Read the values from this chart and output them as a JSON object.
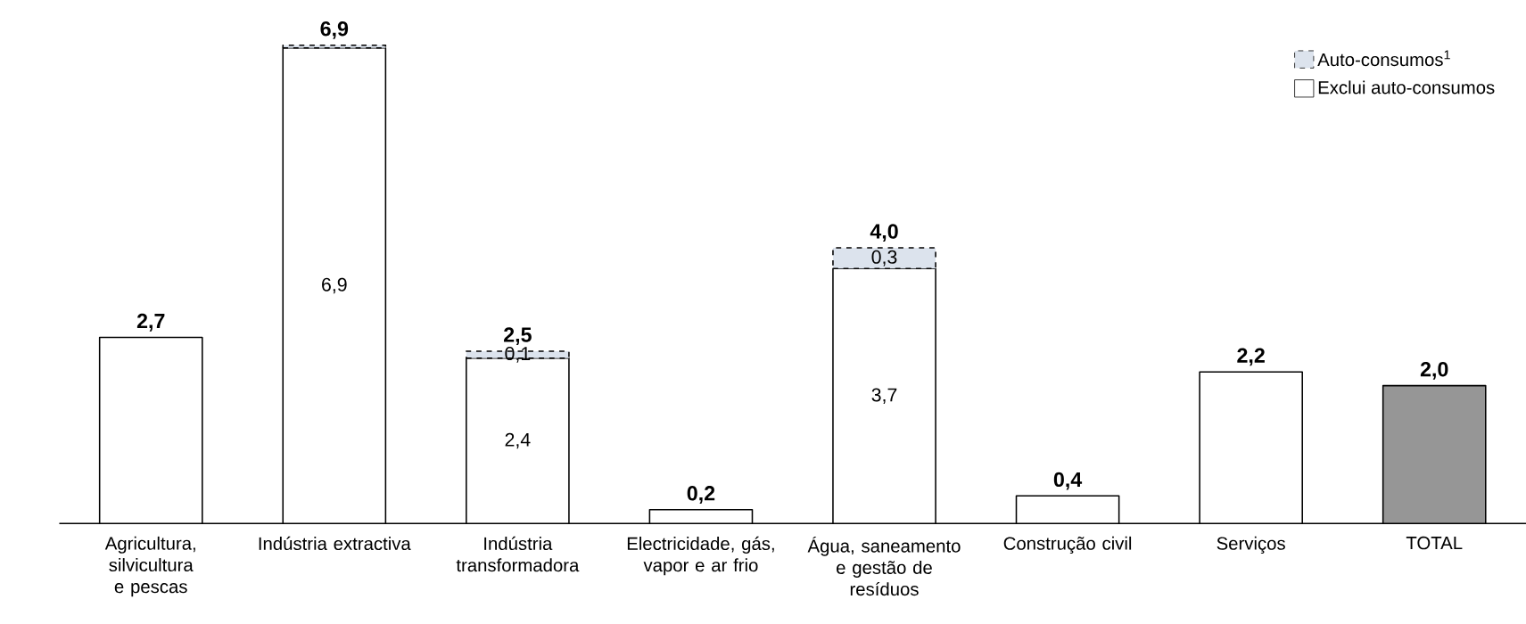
{
  "chart_data": {
    "type": "bar",
    "stacked": true,
    "legend": "top right",
    "categories": [
      "Agricultura, silvicultura e pescas",
      "Indústria extractiva",
      "Indústria transformadora",
      "Electricidade, gás, vapor e ar frio",
      "Água, saneamento e gestão de resíduos",
      "Construção civil",
      "Serviços",
      "TOTAL"
    ],
    "series": [
      {
        "name": "Exclui auto-consumos",
        "color": "#ffffff",
        "colors": [
          "#ffffff",
          "#ffffff",
          "#ffffff",
          "#ffffff",
          "#ffffff",
          "#ffffff",
          "#ffffff",
          "#969696"
        ],
        "line_style": "solid",
        "values": [
          2.7,
          6.9,
          2.4,
          0.2,
          3.7,
          0.4,
          2.2,
          2.0
        ],
        "value_labels": [
          null,
          "6,9",
          "2,4",
          null,
          "3,7",
          null,
          null,
          null
        ]
      },
      {
        "name": "Auto-consumos$^{1}$",
        "color": "#dce3ed",
        "line_style": "dashed",
        "values": [
          null,
          0.04,
          0.1,
          null,
          0.3,
          null,
          null,
          null
        ],
        "value_labels": [
          null,
          null,
          "0,1",
          null,
          "0,3",
          null,
          null,
          null
        ]
      }
    ],
    "totals": [
      "2,7",
      "6,9",
      "2,5",
      "0,2",
      "4,0",
      "0,4",
      "2,2",
      "2,0"
    ]
  }
}
